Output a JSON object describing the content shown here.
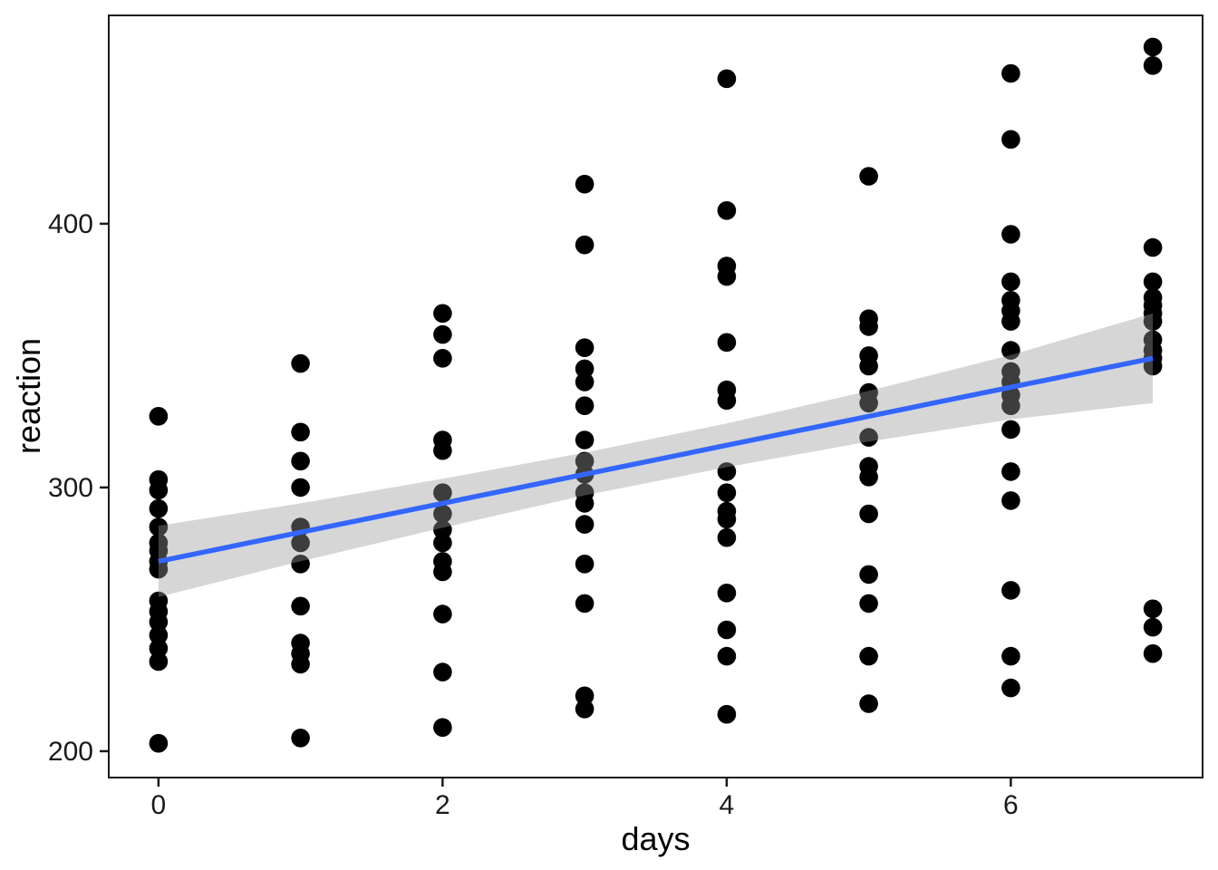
{
  "chart_data": {
    "type": "scatter",
    "title": "",
    "xlabel": "days",
    "ylabel": "reaction",
    "xlim": [
      -0.35,
      7.35
    ],
    "ylim": [
      190,
      479
    ],
    "x_ticks": [
      "0",
      "2",
      "4",
      "6"
    ],
    "x_tick_values": [
      0,
      2,
      4,
      6
    ],
    "y_ticks": [
      "200",
      "300",
      "400"
    ],
    "y_tick_values": [
      200,
      300,
      400
    ],
    "grid": false,
    "legend": false,
    "point_color": "#000000",
    "series": [
      {
        "day": 0,
        "reactions": [
          327,
          303,
          299,
          292,
          285,
          279,
          276,
          272,
          269,
          257,
          253,
          249,
          244,
          239,
          234,
          203
        ]
      },
      {
        "day": 1,
        "reactions": [
          347,
          321,
          310,
          300,
          285,
          279,
          271,
          255,
          241,
          237,
          233,
          205
        ]
      },
      {
        "day": 2,
        "reactions": [
          366,
          358,
          349,
          318,
          314,
          298,
          290,
          284,
          279,
          272,
          268,
          252,
          230,
          209
        ]
      },
      {
        "day": 3,
        "reactions": [
          415,
          392,
          353,
          345,
          340,
          331,
          318,
          310,
          305,
          298,
          294,
          286,
          271,
          256,
          221,
          216
        ]
      },
      {
        "day": 4,
        "reactions": [
          455,
          405,
          384,
          380,
          355,
          337,
          333,
          306,
          298,
          291,
          288,
          281,
          260,
          246,
          236,
          214
        ]
      },
      {
        "day": 5,
        "reactions": [
          418,
          364,
          361,
          350,
          346,
          336,
          332,
          319,
          308,
          304,
          290,
          267,
          256,
          236,
          218
        ]
      },
      {
        "day": 6,
        "reactions": [
          457,
          432,
          396,
          378,
          371,
          367,
          363,
          352,
          344,
          340,
          335,
          331,
          322,
          306,
          295,
          261,
          236,
          224
        ]
      },
      {
        "day": 7,
        "reactions": [
          467,
          460,
          391,
          378,
          372,
          369,
          366,
          363,
          356,
          352,
          349,
          346,
          254,
          247,
          237
        ]
      }
    ],
    "regression_line": {
      "x": [
        0,
        7
      ],
      "y": [
        272,
        349
      ],
      "color": "#3366FF"
    },
    "confidence_band": {
      "x": [
        0,
        1,
        2,
        3,
        4,
        5,
        6,
        7
      ],
      "upper": [
        285.5,
        294,
        303.3,
        313.2,
        324.3,
        336.6,
        350.2,
        366
      ],
      "lower": [
        258.5,
        272,
        284.7,
        297,
        307.7,
        317.4,
        325.8,
        332
      ],
      "color": "#999999",
      "opacity": 0.4
    }
  }
}
